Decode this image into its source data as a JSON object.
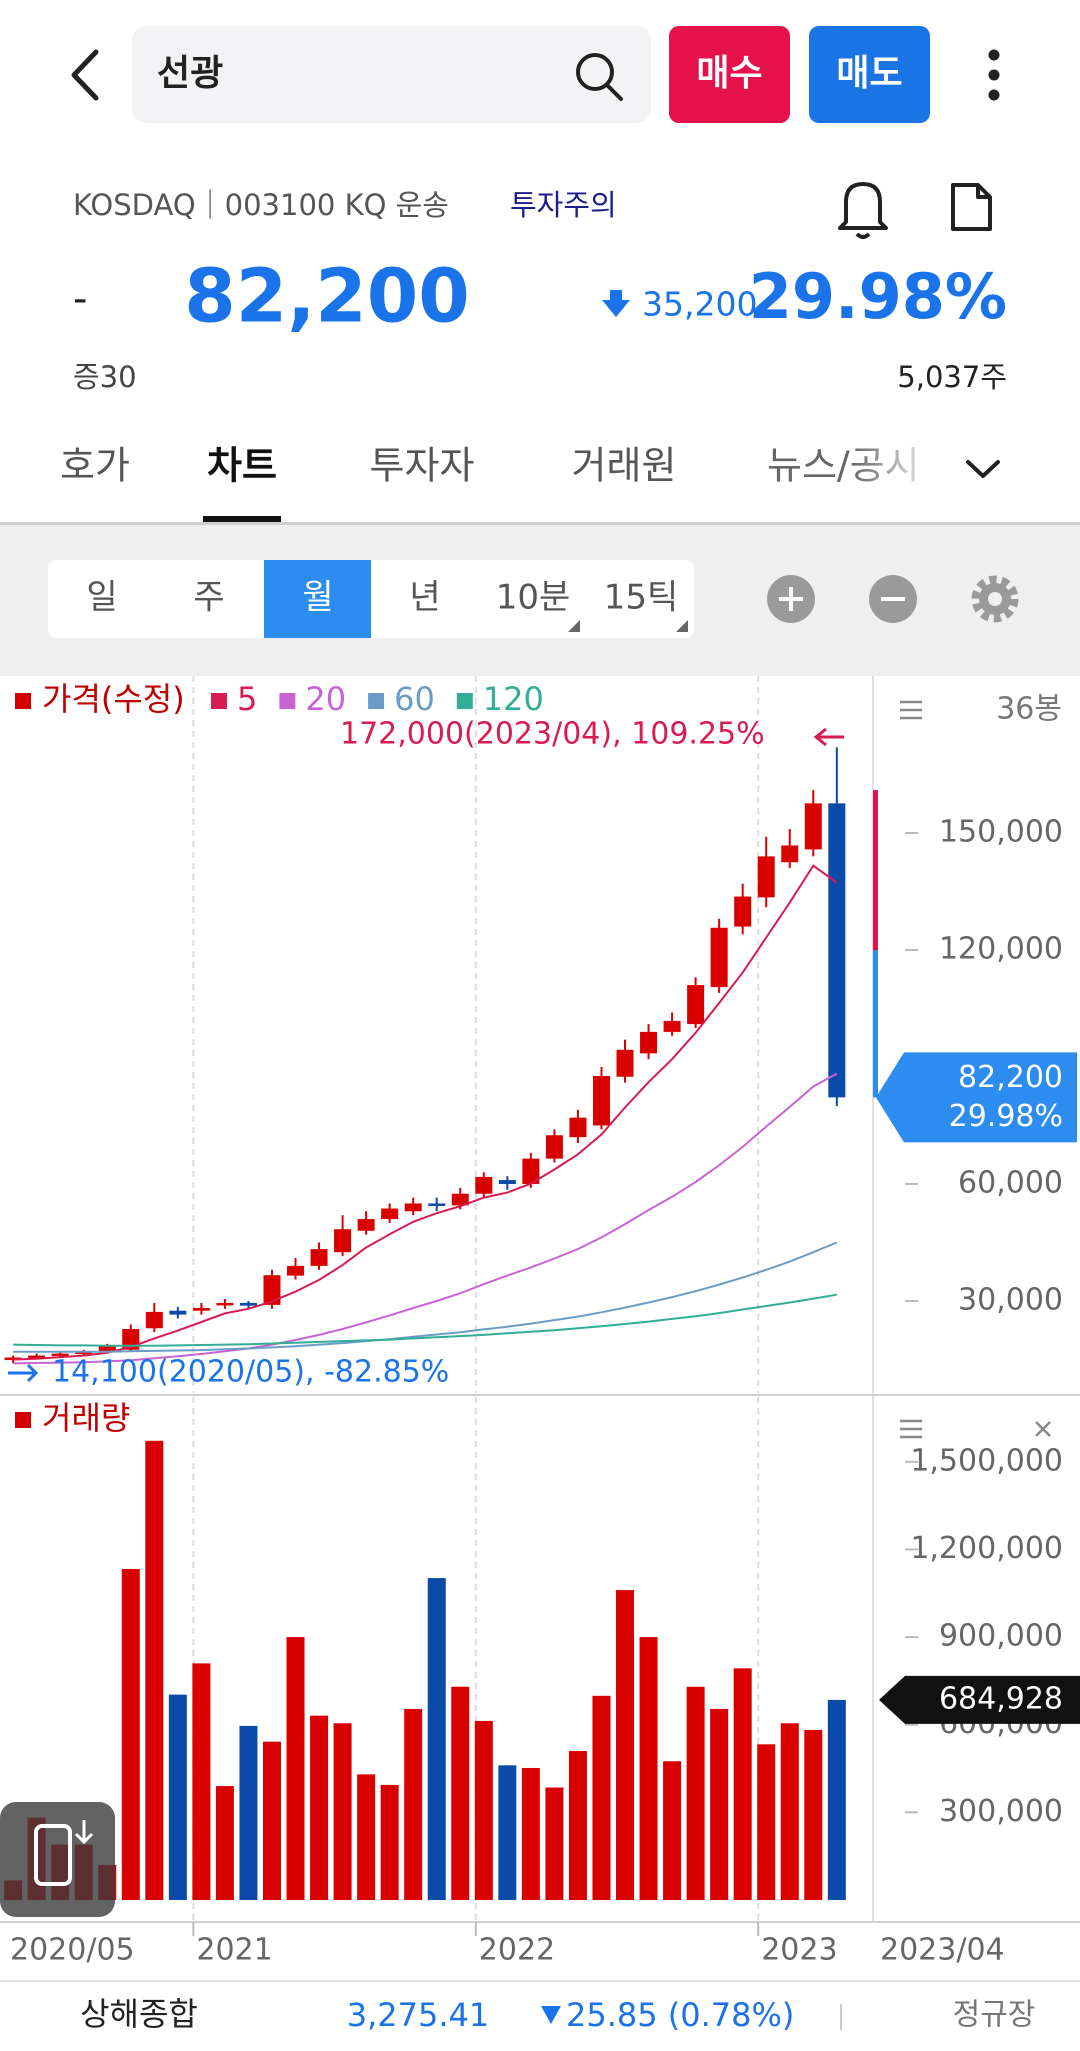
{
  "header": {
    "search_text": "선광",
    "buy": "매수",
    "sell": "매도"
  },
  "stock": {
    "market": "KOSDAQ｜003100 KQ 운송",
    "warning": "투자주의",
    "prefix": "-",
    "price": "82,200",
    "change": "35,200",
    "change_rate": "29.98%",
    "margin": "증30",
    "volume": "5,037주"
  },
  "tabs": [
    "호가",
    "차트",
    "투자자",
    "거래원",
    "뉴스/공시"
  ],
  "periods": [
    "일",
    "주",
    "월",
    "년",
    "10분",
    "15틱"
  ],
  "chart_data": [
    {
      "type": "candlestick",
      "count_label": "36봉",
      "categories": [
        "2020/05",
        "2020/06",
        "2020/07",
        "2020/08",
        "2020/09",
        "2020/10",
        "2020/11",
        "2020/12",
        "2021/01",
        "2021/02",
        "2021/03",
        "2021/04",
        "2021/05",
        "2021/06",
        "2021/07",
        "2021/08",
        "2021/09",
        "2021/10",
        "2021/11",
        "2021/12",
        "2022/01",
        "2022/02",
        "2022/03",
        "2022/04",
        "2022/05",
        "2022/06",
        "2022/07",
        "2022/08",
        "2022/09",
        "2022/10",
        "2022/11",
        "2022/12",
        "2023/01",
        "2023/02",
        "2023/03",
        "2023/04"
      ],
      "candles": {
        "name": "가격(수정)",
        "color": "#d40000",
        "up_color": "#d90000",
        "down_color": "#0b4aa8",
        "open": [
          15000,
          15500,
          16000,
          16500,
          17000,
          17500,
          23000,
          27500,
          27500,
          29000,
          29500,
          29000,
          36500,
          39000,
          42500,
          48000,
          51000,
          53000,
          55000,
          54500,
          57500,
          61000,
          60000,
          66500,
          72000,
          75000,
          87500,
          93500,
          99000,
          101000,
          110500,
          126000,
          133500,
          142500,
          145800,
          157600
        ],
        "high": [
          16000,
          16500,
          17000,
          17500,
          19000,
          24000,
          29500,
          28500,
          29500,
          30500,
          30000,
          38000,
          41000,
          45000,
          52000,
          53000,
          55000,
          56500,
          56500,
          59000,
          63000,
          62000,
          68000,
          74000,
          79000,
          90000,
          97000,
          101000,
          104000,
          113000,
          128000,
          137000,
          149000,
          151000,
          161000,
          172000
        ],
        "low": [
          14100,
          15000,
          15500,
          16000,
          16500,
          17000,
          22000,
          25500,
          26500,
          28000,
          28000,
          28000,
          35500,
          38000,
          41500,
          47000,
          50000,
          52000,
          53000,
          53500,
          56500,
          58500,
          59000,
          65500,
          70500,
          74000,
          86000,
          92000,
          98000,
          100000,
          109000,
          124000,
          131000,
          141000,
          144000,
          80000
        ],
        "close": [
          15500,
          16000,
          16500,
          17000,
          18500,
          22800,
          27200,
          26500,
          28200,
          29500,
          28800,
          36600,
          39000,
          43300,
          48400,
          51000,
          53700,
          55000,
          54500,
          57500,
          61800,
          60000,
          66500,
          72500,
          77000,
          87700,
          94400,
          99000,
          101800,
          111000,
          125700,
          133700,
          144000,
          146800,
          157600,
          82200
        ]
      },
      "series": [
        {
          "name": "5",
          "color": "#d81b50",
          "values": [
            15000,
            15200,
            15600,
            16000,
            16700,
            18200,
            20400,
            22400,
            24600,
            26800,
            28000,
            29900,
            32400,
            35400,
            39200,
            43700,
            47100,
            50300,
            52500,
            54300,
            56500,
            57800,
            60100,
            63700,
            67600,
            72700,
            79600,
            86100,
            92000,
            98800,
            106400,
            114200,
            123200,
            132200,
            141600,
            137300
          ]
        },
        {
          "name": "20",
          "color": "#c864d4",
          "values": [
            14000,
            14100,
            14200,
            14300,
            14500,
            14800,
            15300,
            15800,
            16400,
            17100,
            17800,
            18800,
            20000,
            21300,
            22800,
            24500,
            26300,
            28200,
            30000,
            32000,
            34300,
            36500,
            38600,
            40900,
            43300,
            46300,
            49700,
            53300,
            56700,
            60500,
            64800,
            69500,
            74700,
            79800,
            85000,
            88300
          ]
        },
        {
          "name": "60",
          "color": "#6b9cc8",
          "values": [
            17000,
            17000,
            17000,
            17000,
            17000,
            17100,
            17200,
            17300,
            17400,
            17600,
            17800,
            18100,
            18400,
            18800,
            19200,
            19700,
            20200,
            20800,
            21400,
            22000,
            22700,
            23400,
            24200,
            25100,
            26000,
            27100,
            28300,
            29600,
            31000,
            32500,
            34200,
            36000,
            38000,
            40100,
            42500,
            45000
          ]
        },
        {
          "name": "120",
          "color": "#33ad96",
          "values": [
            18800,
            18700,
            18600,
            18600,
            18500,
            18500,
            18500,
            18600,
            18700,
            18800,
            18900,
            19100,
            19300,
            19500,
            19700,
            19900,
            20100,
            20400,
            20700,
            21000,
            21300,
            21700,
            22100,
            22500,
            23000,
            23500,
            24100,
            24700,
            25400,
            26100,
            26900,
            27800,
            28700,
            29600,
            30600,
            31600
          ]
        }
      ],
      "ylim": [
        6400,
        190000
      ],
      "yticks": [
        {
          "value": 30000,
          "label": "30,000"
        },
        {
          "value": 60000,
          "label": "60,000"
        },
        {
          "value": 120000,
          "label": "120,000"
        },
        {
          "value": 150000,
          "label": "150,000"
        }
      ],
      "annotations": [
        {
          "text": "172,000(2023/04), 109.25%",
          "color": "#d81b50"
        },
        {
          "text": "14,100(2020/05), -82.85%",
          "color": "#1a73e8"
        }
      ]
    },
    {
      "type": "bar",
      "title": "거래량",
      "color": "#d40000",
      "categories": [
        "2020/05",
        "2020/06",
        "2020/07",
        "2020/08",
        "2020/09",
        "2020/10",
        "2020/11",
        "2020/12",
        "2021/01",
        "2021/02",
        "2021/03",
        "2021/04",
        "2021/05",
        "2021/06",
        "2021/07",
        "2021/08",
        "2021/09",
        "2021/10",
        "2021/11",
        "2021/12",
        "2022/01",
        "2022/02",
        "2022/03",
        "2022/04",
        "2022/05",
        "2022/06",
        "2022/07",
        "2022/08",
        "2022/09",
        "2022/10",
        "2022/11",
        "2022/12",
        "2023/01",
        "2023/02",
        "2023/03",
        "2023/04"
      ],
      "values": [
        67000,
        282000,
        190000,
        190000,
        120000,
        1133000,
        1572000,
        703000,
        810000,
        390000,
        596000,
        542000,
        900000,
        631000,
        605000,
        430000,
        394000,
        654000,
        1102000,
        730000,
        613000,
        461000,
        452000,
        385000,
        510000,
        699000,
        1061000,
        900000,
        475000,
        730000,
        654000,
        793000,
        533000,
        605000,
        582000,
        684928
      ],
      "value_labels": [
        null,
        null,
        null,
        null,
        null,
        null,
        null,
        null,
        null,
        null,
        null,
        null,
        null,
        null,
        null,
        null,
        null,
        null,
        null,
        null,
        null,
        null,
        null,
        null,
        null,
        null,
        null,
        null,
        null,
        null,
        null,
        null,
        null,
        null,
        null,
        "684,928"
      ],
      "ylim": [
        0,
        1715000
      ],
      "yticks": [
        {
          "value": 300000,
          "label": "300,000"
        },
        {
          "value": 600000,
          "label": "600,000"
        },
        {
          "value": 900000,
          "label": "900,000"
        },
        {
          "value": 1200000,
          "label": "1,200,000"
        },
        {
          "value": 1500000,
          "label": "1,500,000"
        }
      ],
      "xticks": [
        {
          "value": "2020/05",
          "label": "2020/05"
        },
        {
          "value": "2021/01",
          "label": "2021"
        },
        {
          "value": "2022/01",
          "label": "2022"
        },
        {
          "value": "2023/01",
          "label": "2023"
        }
      ]
    }
  ],
  "footer": {
    "index_name": "상해종합",
    "index_value": "3,275.41",
    "index_change": "25.85 (0.78%)",
    "session": "정규장"
  }
}
